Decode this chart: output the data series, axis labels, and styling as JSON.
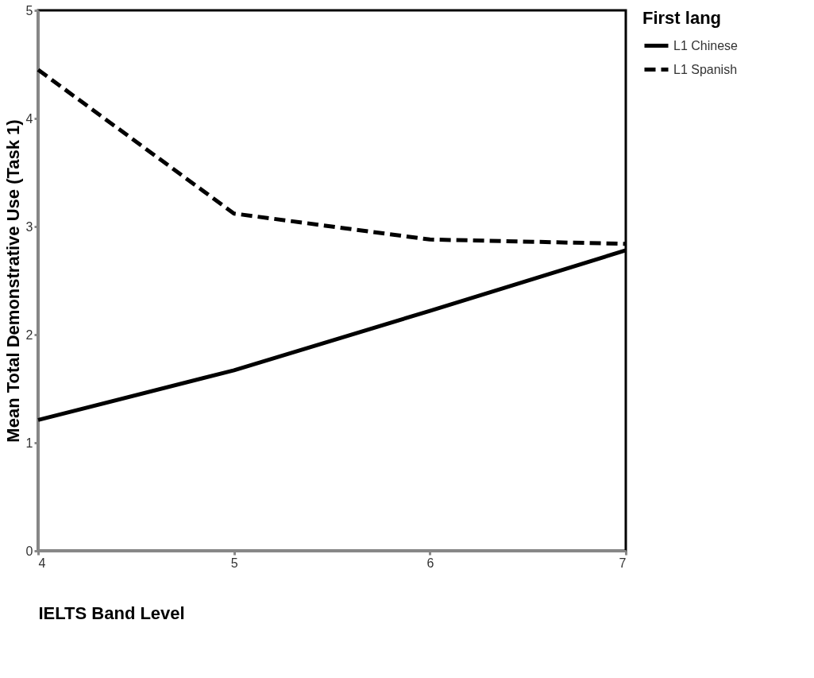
{
  "chart_data": {
    "type": "line",
    "xlabel": "IELTS Band Level",
    "ylabel": "Mean Total Demonstrative Use (Task 1)",
    "legend_title": "First lang",
    "x": [
      4,
      5,
      6,
      7
    ],
    "xlim": [
      4,
      7
    ],
    "xticks": [
      4,
      5,
      6,
      7
    ],
    "ylim": [
      0,
      5
    ],
    "yticks": [
      0,
      1,
      2,
      3,
      4,
      5
    ],
    "series": [
      {
        "name": "L1 Chinese",
        "color": "#000000",
        "line_style": "solid",
        "values": [
          1.21,
          1.67,
          2.22,
          2.78
        ]
      },
      {
        "name": "L1 Spanish",
        "color": "#000000",
        "line_style": "dashed",
        "values": [
          4.45,
          3.12,
          2.88,
          2.84
        ]
      }
    ],
    "grid": false,
    "legend": "right",
    "marker": "none"
  }
}
